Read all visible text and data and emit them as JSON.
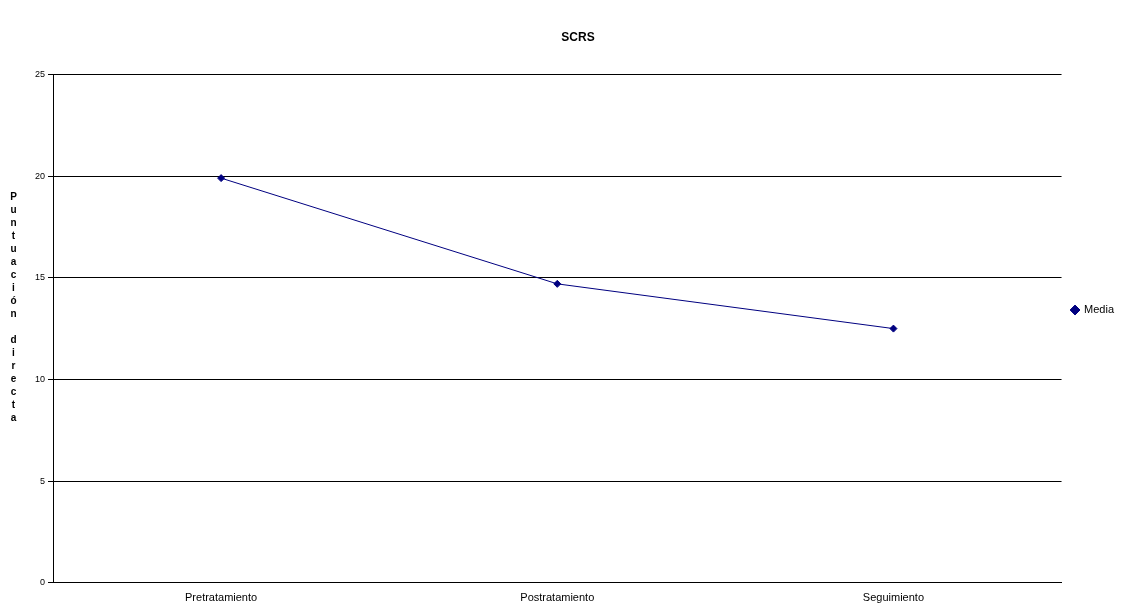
{
  "chart_data": {
    "type": "line",
    "title": "SCRS",
    "ylabel": "Puntuación directa",
    "categories": [
      "Pretratamiento",
      "Postratamiento",
      "Seguimiento"
    ],
    "series": [
      {
        "name": "Media",
        "color": "#000080",
        "values": [
          19.9,
          14.7,
          12.5
        ]
      }
    ],
    "ylim": [
      0,
      25
    ],
    "yticks": [
      0,
      5,
      10,
      15,
      20,
      25
    ],
    "grid": "y",
    "legend": "right",
    "marker": "diamond",
    "line_style": "solid"
  }
}
